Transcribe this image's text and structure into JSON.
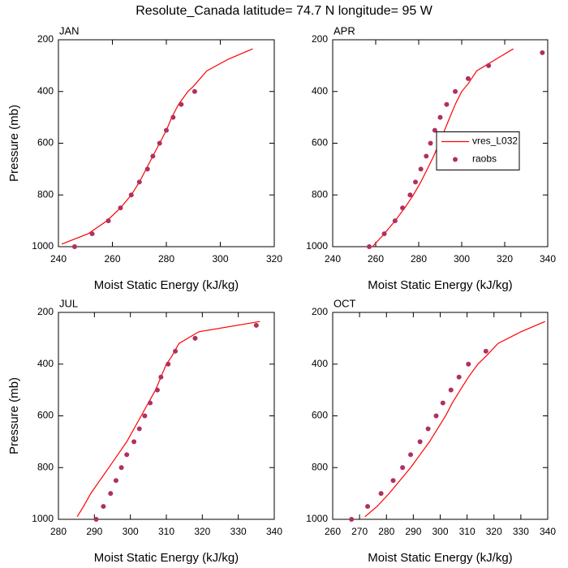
{
  "title": "Resolute_Canada  latitude= 74.7 N longitude= 95 W",
  "chart_data": [
    {
      "type": "line",
      "title": "JAN",
      "xlabel": "Moist Static Energy (kJ/kg)",
      "ylabel": "Pressure (mb)",
      "xlim": [
        240,
        320
      ],
      "xticks": [
        240,
        260,
        280,
        300,
        320
      ],
      "ylim": [
        1000,
        200
      ],
      "yticks": [
        200,
        400,
        600,
        800,
        1000
      ],
      "legend": false,
      "series": [
        {
          "name": "vres_L032",
          "color": "#ff0000",
          "style": "line",
          "x": [
            241.2,
            251,
            258,
            263,
            267,
            270,
            272.5,
            275,
            277.5,
            280,
            282,
            284.5,
            288,
            290,
            295,
            303,
            312
          ],
          "y": [
            990,
            950,
            900,
            850,
            800,
            750,
            700,
            650,
            600,
            550,
            500,
            450,
            400,
            380,
            320,
            275,
            235
          ]
        },
        {
          "name": "raobs",
          "color": "#b03060",
          "style": "scatter",
          "x": [
            246,
            252.5,
            258.5,
            263,
            267,
            270,
            273,
            275,
            277.5,
            280,
            282.5,
            285.5,
            290.5
          ],
          "y": [
            1000,
            950,
            900,
            850,
            800,
            750,
            700,
            650,
            600,
            550,
            500,
            450,
            400
          ]
        }
      ]
    },
    {
      "type": "line",
      "title": "APR",
      "xlabel": "Moist Static Energy (kJ/kg)",
      "xlim": [
        240,
        340
      ],
      "xticks": [
        240,
        260,
        280,
        300,
        320,
        340
      ],
      "ylim": [
        1000,
        200
      ],
      "yticks": [
        200,
        400,
        600,
        800,
        1000
      ],
      "legend": "right",
      "series": [
        {
          "name": "vres_L032",
          "color": "#ff0000",
          "style": "line",
          "x": [
            258.5,
            264,
            269,
            273.5,
            277.5,
            281,
            284,
            287,
            289.5,
            292,
            294.5,
            297,
            300,
            303,
            307,
            316,
            324
          ],
          "y": [
            1000,
            950,
            900,
            850,
            800,
            750,
            700,
            650,
            600,
            550,
            500,
            450,
            400,
            370,
            320,
            275,
            235
          ]
        },
        {
          "name": "raobs",
          "color": "#b03060",
          "style": "scatter",
          "x": [
            257,
            264,
            269,
            272.5,
            276,
            278.5,
            281,
            283.5,
            285.5,
            287.5,
            290,
            293,
            297,
            303,
            312.5,
            337.5
          ],
          "y": [
            1000,
            950,
            900,
            850,
            800,
            750,
            700,
            650,
            600,
            550,
            500,
            450,
            400,
            350,
            300,
            250
          ]
        }
      ]
    },
    {
      "type": "line",
      "title": "JUL",
      "xlabel": "Moist Static Energy (kJ/kg)",
      "ylabel": "Pressure (mb)",
      "xlim": [
        280,
        340
      ],
      "xticks": [
        280,
        290,
        300,
        310,
        320,
        330,
        340
      ],
      "ylim": [
        1000,
        200
      ],
      "yticks": [
        200,
        400,
        600,
        800,
        1000
      ],
      "legend": false,
      "series": [
        {
          "name": "vres_L032",
          "color": "#ff0000",
          "style": "line",
          "x": [
            285.2,
            287,
            289,
            291.5,
            294,
            296.5,
            299,
            301,
            303,
            305,
            307,
            308.5,
            310,
            311.5,
            313.5,
            319,
            336
          ],
          "y": [
            990,
            950,
            900,
            850,
            800,
            750,
            700,
            650,
            600,
            550,
            500,
            450,
            400,
            370,
            320,
            275,
            235
          ]
        },
        {
          "name": "raobs",
          "color": "#b03060",
          "style": "scatter",
          "x": [
            290.5,
            292.5,
            294.5,
            296,
            297.5,
            299,
            301,
            302.5,
            304,
            305.5,
            307.5,
            308.5,
            310.5,
            312.5,
            318,
            335
          ],
          "y": [
            1000,
            950,
            900,
            850,
            800,
            750,
            700,
            650,
            600,
            550,
            500,
            450,
            400,
            350,
            300,
            250
          ]
        }
      ]
    },
    {
      "type": "line",
      "title": "OCT",
      "xlabel": "Moist Static Energy (kJ/kg)",
      "xlim": [
        260,
        340
      ],
      "xticks": [
        260,
        270,
        280,
        290,
        300,
        310,
        320,
        330,
        340
      ],
      "ylim": [
        1000,
        200
      ],
      "yticks": [
        200,
        400,
        600,
        800,
        1000
      ],
      "legend": false,
      "series": [
        {
          "name": "vres_L032",
          "color": "#ff0000",
          "style": "line",
          "x": [
            272,
            276.5,
            281,
            285,
            289,
            292.5,
            296,
            299,
            302,
            304.5,
            307.5,
            310.5,
            314,
            317,
            321.5,
            330,
            339
          ],
          "y": [
            990,
            950,
            900,
            850,
            800,
            750,
            700,
            650,
            600,
            550,
            500,
            450,
            400,
            370,
            320,
            275,
            235
          ]
        },
        {
          "name": "raobs",
          "color": "#b03060",
          "style": "scatter",
          "x": [
            267,
            273,
            278,
            282.5,
            286,
            289,
            292.5,
            295.5,
            298.5,
            301,
            304,
            307,
            310.5,
            317
          ],
          "y": [
            1000,
            950,
            900,
            850,
            800,
            750,
            700,
            650,
            600,
            550,
            500,
            450,
            400,
            350
          ]
        }
      ]
    }
  ]
}
